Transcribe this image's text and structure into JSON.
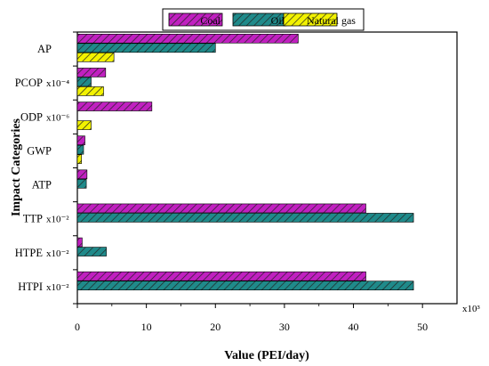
{
  "chart_data": {
    "type": "bar",
    "orientation": "horizontal",
    "xlabel": "Value (PEI/day)",
    "ylabel": "Impact Categories",
    "x_multiplier": "x10³",
    "xlim": [
      0,
      55
    ],
    "xticks": [
      0,
      10,
      20,
      30,
      40,
      50
    ],
    "categories": [
      "AP",
      "PCOP",
      "ODP",
      "GWP",
      "ATP",
      "TTP",
      "HTPE",
      "HTPI"
    ],
    "category_multipliers": [
      "",
      "x10⁻⁴",
      "x10⁻⁶",
      "",
      "",
      "x10⁻²",
      "x10⁻²",
      "x10⁻²"
    ],
    "series": [
      {
        "name": "Coal",
        "color": "#c020c0",
        "values": [
          32.0,
          4.1,
          10.8,
          1.1,
          1.4,
          41.8,
          0.7,
          41.8
        ]
      },
      {
        "name": "Oil",
        "color": "#1f8a8a",
        "values": [
          20.0,
          2.0,
          0.0,
          0.9,
          1.3,
          48.7,
          4.2,
          48.7
        ]
      },
      {
        "name": "Natural gas",
        "color": "#f2f200",
        "values": [
          5.3,
          3.8,
          2.0,
          0.6,
          0.0,
          0.0,
          0.0,
          0.0
        ]
      }
    ],
    "legend_position": "top",
    "grid": false
  }
}
